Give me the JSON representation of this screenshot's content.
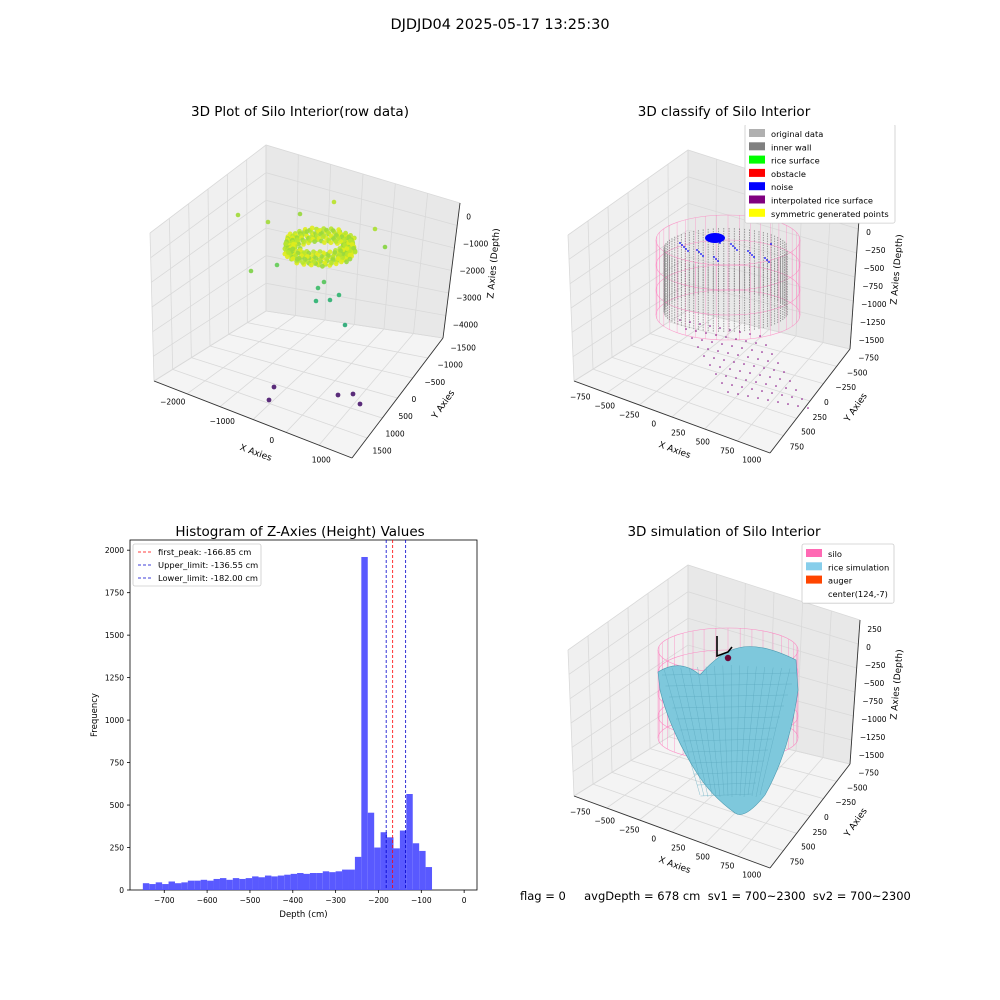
{
  "suptitle": "DJDJD04 2025-05-17 13:25:30",
  "status_text": "flag = 0     avgDepth = 678 cm  sv1 = 700~2300  sv2 = 700~2300",
  "colors": {
    "grid": "#d9d9d9",
    "pane": "#f2f2f2",
    "pane_dark": "#e6e6e6",
    "hist_bar": "#5050ff",
    "peak_line": "#ff0000",
    "limit_line": "#0000cc",
    "silo_wire": "#ff77bb",
    "rice_surface": "#7ec8dc",
    "inner_wall": "#808080",
    "noise": "#0000ff",
    "interp_surface": "#800080"
  },
  "chart_data": [
    {
      "type": "scatter",
      "title": "3D Plot of Silo Interior(row data)",
      "xlabel": "X Axies",
      "ylabel": "Y Axies",
      "zlabel": "Z Axies (Depth)",
      "x_ticks": [
        "−2000",
        "−1000",
        "0",
        "1000"
      ],
      "y_ticks": [
        "−1500",
        "−1000",
        "−500",
        "0",
        "500",
        "1000",
        "1500"
      ],
      "z_ticks": [
        "0",
        "−1000",
        "−2000",
        "−3000",
        "−4000"
      ],
      "xlim": [
        -2500,
        1500
      ],
      "ylim": [
        -1500,
        1500
      ],
      "zlim": [
        -4500,
        0
      ],
      "colormap": "viridis (colored by depth)",
      "description": "dense yellow-green ring of points near z≈-1500 with sparse outliers and 5 purple points near z≈-4300"
    },
    {
      "type": "scatter",
      "title": "3D classify of Silo Interior",
      "xlabel": "X Axies",
      "ylabel": "Y Axies",
      "zlabel": "Z Axies (Depth)",
      "x_ticks": [
        "−750",
        "−500",
        "−250",
        "0",
        "250",
        "500",
        "750",
        "1000"
      ],
      "y_ticks": [
        "−750",
        "−500",
        "−250",
        "0",
        "250",
        "500",
        "750"
      ],
      "z_ticks": [
        "250",
        "0",
        "−250",
        "−500",
        "−750",
        "−1000",
        "−1250",
        "−1500"
      ],
      "zlim": [
        -1750,
        250
      ],
      "legend": [
        {
          "label": "original data",
          "color": "#b0b0b0"
        },
        {
          "label": "inner wall",
          "color": "#808080"
        },
        {
          "label": "rice surface",
          "color": "#00ff00"
        },
        {
          "label": "obstacle",
          "color": "#ff0000"
        },
        {
          "label": "noise",
          "color": "#0000ff"
        },
        {
          "label": "interpolated rice surface",
          "color": "#800080"
        },
        {
          "label": "symmetric generated points",
          "color": "#ffff00"
        }
      ],
      "legend_position": "top-right"
    },
    {
      "type": "bar",
      "title": "Histogram of Z-Axies (Height) Values",
      "xlabel": "Depth (cm)",
      "ylabel": "Frequency",
      "xlim": [
        -780,
        30
      ],
      "ylim": [
        0,
        2060
      ],
      "x_ticks": [
        {
          "value": -700,
          "label": "−700"
        },
        {
          "value": -600,
          "label": "−600"
        },
        {
          "value": -500,
          "label": "−500"
        },
        {
          "value": -400,
          "label": "−400"
        },
        {
          "value": -300,
          "label": "−300"
        },
        {
          "value": -200,
          "label": "−200"
        },
        {
          "value": -100,
          "label": "−100"
        },
        {
          "value": 0,
          "label": "0"
        }
      ],
      "y_ticks": [
        0,
        250,
        500,
        750,
        1000,
        1250,
        1500,
        1750,
        2000
      ],
      "bin_start": -750,
      "bin_width": 15,
      "values": [
        40,
        35,
        45,
        35,
        50,
        40,
        45,
        55,
        55,
        60,
        55,
        65,
        70,
        60,
        70,
        65,
        70,
        80,
        75,
        85,
        80,
        85,
        90,
        95,
        100,
        95,
        100,
        100,
        110,
        105,
        110,
        120,
        120,
        195,
        1960,
        455,
        250,
        340,
        310,
        245,
        350,
        565,
        275,
        230,
        135
      ],
      "vlines": [
        {
          "label": "first_peak: -166.85 cm",
          "x": -166.85,
          "style": "dashed",
          "color": "#ff0000"
        },
        {
          "label": "Upper_limit: -136.55 cm",
          "x": -136.55,
          "style": "dashed",
          "color": "#0000cc"
        },
        {
          "label": "Lower_limit: -182.00 cm",
          "x": -182.0,
          "style": "dashed",
          "color": "#0000cc"
        }
      ],
      "legend_position": "top-left"
    },
    {
      "type": "surface",
      "title": "3D simulation of Silo Interior",
      "xlabel": "X Axies",
      "ylabel": "Y Axies",
      "zlabel": "Z Axies (Depth)",
      "x_ticks": [
        "−750",
        "−500",
        "−250",
        "0",
        "250",
        "500",
        "750",
        "1000"
      ],
      "y_ticks": [
        "−750",
        "−500",
        "−250",
        "0",
        "250",
        "500",
        "750"
      ],
      "z_ticks": [
        "250",
        "0",
        "−250",
        "−500",
        "−750",
        "−1000",
        "−1250",
        "−1500"
      ],
      "zlim": [
        -1750,
        250
      ],
      "legend": [
        {
          "label": "silo",
          "color": "#ff69b4"
        },
        {
          "label": "rice simulation",
          "color": "#87ceeb"
        },
        {
          "label": "auger",
          "color": "#ff4500"
        },
        {
          "label": "center(124,-7)",
          "color": "none"
        }
      ],
      "legend_position": "top-right"
    }
  ]
}
